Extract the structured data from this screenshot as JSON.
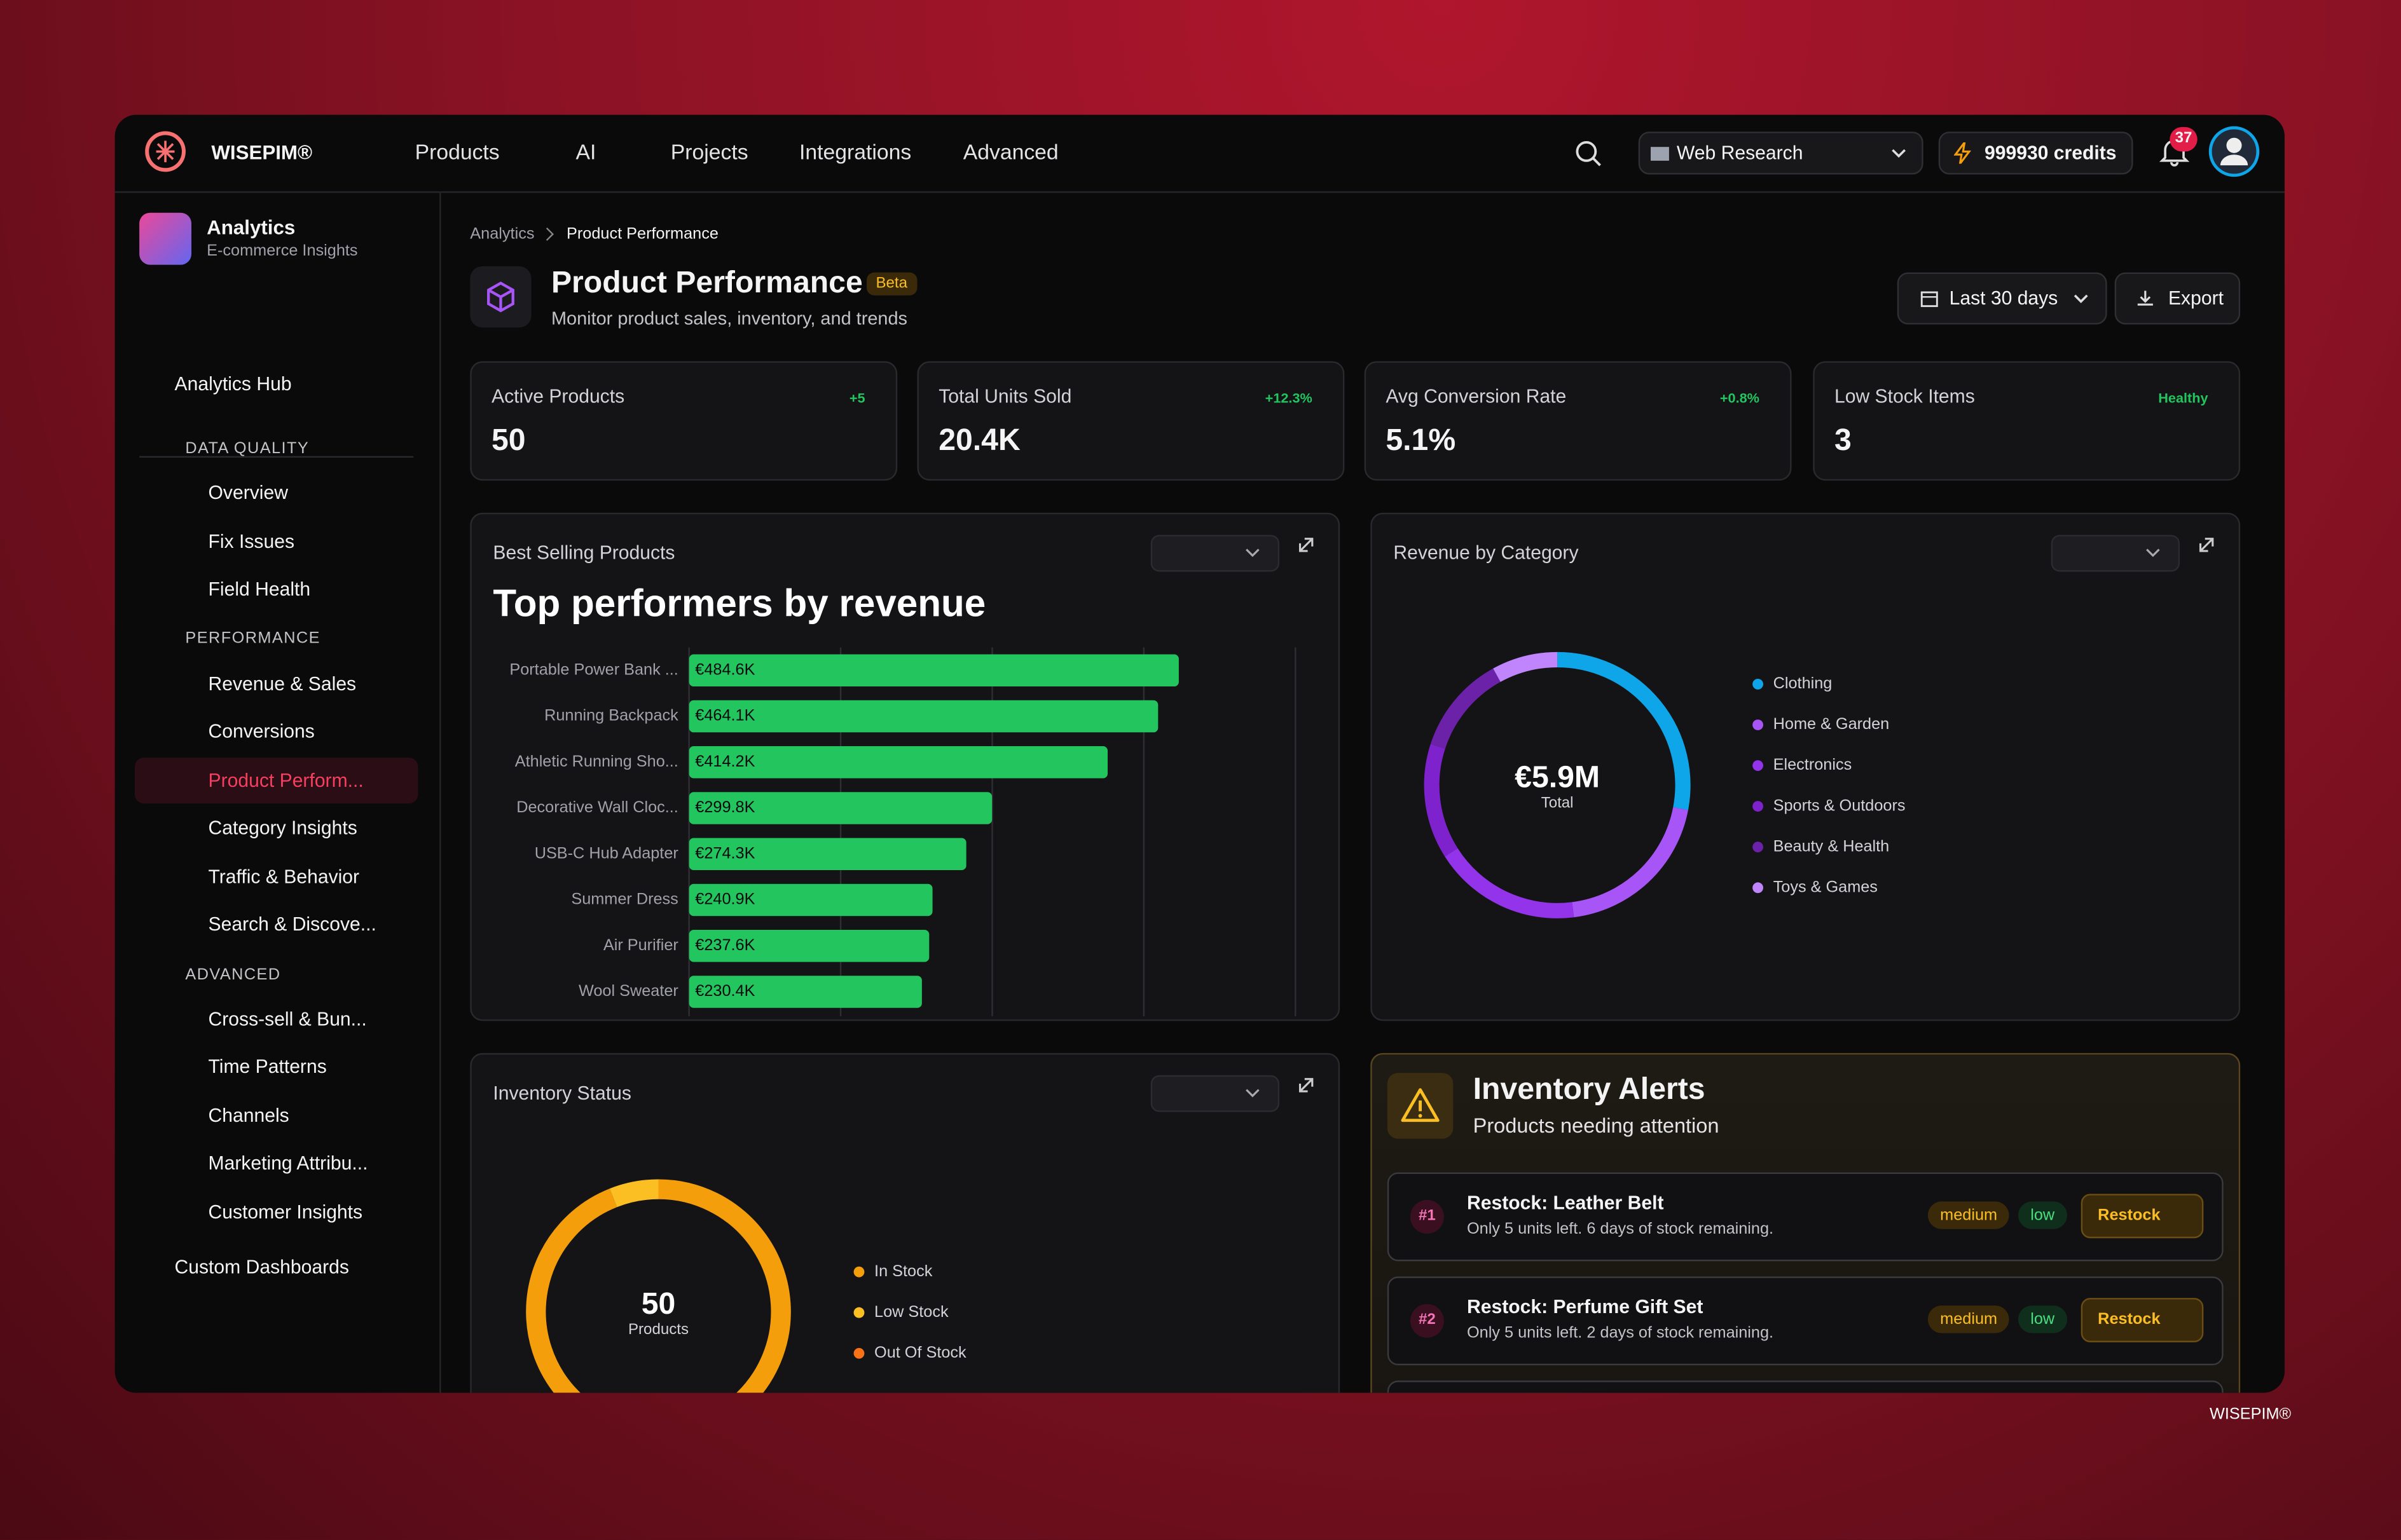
{
  "app": {
    "brand": "WISEPIM®",
    "nav": [
      "Products",
      "AI",
      "Projects",
      "Integrations",
      "Advanced"
    ],
    "workspace": "Web Research",
    "credits": "999930 credits",
    "notifications": "37",
    "footer": "WISEPIM®"
  },
  "sidebar": {
    "title": "Analytics",
    "subtitle": "E-commerce Insights",
    "hub": "Analytics Hub",
    "sections": [
      {
        "name": "DATA QUALITY",
        "items": [
          "Overview",
          "Fix Issues",
          "Field Health"
        ]
      },
      {
        "name": "PERFORMANCE",
        "items": [
          "Revenue & Sales",
          "Conversions",
          "Product Perform...",
          "Category Insights",
          "Traffic & Behavior",
          "Search & Discove..."
        ]
      },
      {
        "name": "ADVANCED",
        "items": [
          "Cross-sell & Bun...",
          "Time Patterns",
          "Channels",
          "Marketing Attribu...",
          "Customer Insights"
        ]
      }
    ],
    "custom": "Custom Dashboards"
  },
  "header": {
    "breadcrumb": [
      "Analytics",
      "Product Performance"
    ],
    "title": "Product Performance",
    "badge": "Beta",
    "subtitle": "Monitor product sales, inventory, and trends",
    "date_range": "Last 30 days",
    "export": "Export"
  },
  "kpis": [
    {
      "label": "Active Products",
      "value": "50",
      "change": "+5"
    },
    {
      "label": "Total Units Sold",
      "value": "20.4K",
      "change": "+12.3%"
    },
    {
      "label": "Avg Conversion Rate",
      "value": "5.1%",
      "change": "+0.8%"
    },
    {
      "label": "Low Stock Items",
      "value": "3",
      "change": "Healthy"
    }
  ],
  "chart_data": [
    {
      "type": "bar",
      "title": "Best Selling Products",
      "subtitle": "Top performers by revenue",
      "categories": [
        "Portable Power Bank ...",
        "Running Backpack",
        "Athletic Running Sho...",
        "Decorative Wall Cloc...",
        "USB-C Hub Adapter",
        "Summer Dress",
        "Air Purifier",
        "Wool Sweater"
      ],
      "values": [
        484.6,
        464.1,
        414.2,
        299.8,
        274.3,
        240.9,
        237.6,
        230.4
      ],
      "value_labels": [
        "€484.6K",
        "€464.1K",
        "€414.2K",
        "€299.8K",
        "€274.3K",
        "€240.9K",
        "€237.6K",
        "€230.4K"
      ],
      "color": "#22c55e",
      "xlim": [
        0,
        600
      ],
      "xticks": [
        0,
        150,
        300,
        450,
        600
      ],
      "grid": true
    },
    {
      "type": "donut",
      "title": "Revenue by Category",
      "center_label": "€5.9M",
      "center_sublabel": "Total",
      "categories": [
        "Clothing",
        "Home & Garden",
        "Electronics",
        "Sports & Outdoors",
        "Beauty & Health",
        "Toys & Games"
      ],
      "values": [
        28,
        20,
        18,
        14,
        12,
        8
      ],
      "colors": [
        "#0ea5e9",
        "#a855f7",
        "#9333ea",
        "#7e22ce",
        "#6b21a8",
        "#c084fc"
      ]
    },
    {
      "type": "donut",
      "title": "Inventory Status",
      "center_label": "50",
      "center_sublabel": "Products",
      "categories": [
        "In Stock",
        "Low Stock",
        "Out Of Stock"
      ],
      "values": [
        47,
        3,
        0
      ],
      "colors": [
        "#f59e0b",
        "#fbbf24",
        "#f97316"
      ]
    }
  ],
  "alerts": {
    "title": "Inventory Alerts",
    "subtitle": "Products needing attention",
    "items": [
      {
        "rank": "#1",
        "title": "Restock: Leather Belt",
        "description": "Only 5 units left. 6 days of stock remaining.",
        "priority": "medium",
        "level": "low",
        "action": "Restock"
      },
      {
        "rank": "#2",
        "title": "Restock: Perfume Gift Set",
        "description": "Only 5 units left. 2 days of stock remaining.",
        "priority": "medium",
        "level": "low",
        "action": "Restock"
      }
    ]
  }
}
